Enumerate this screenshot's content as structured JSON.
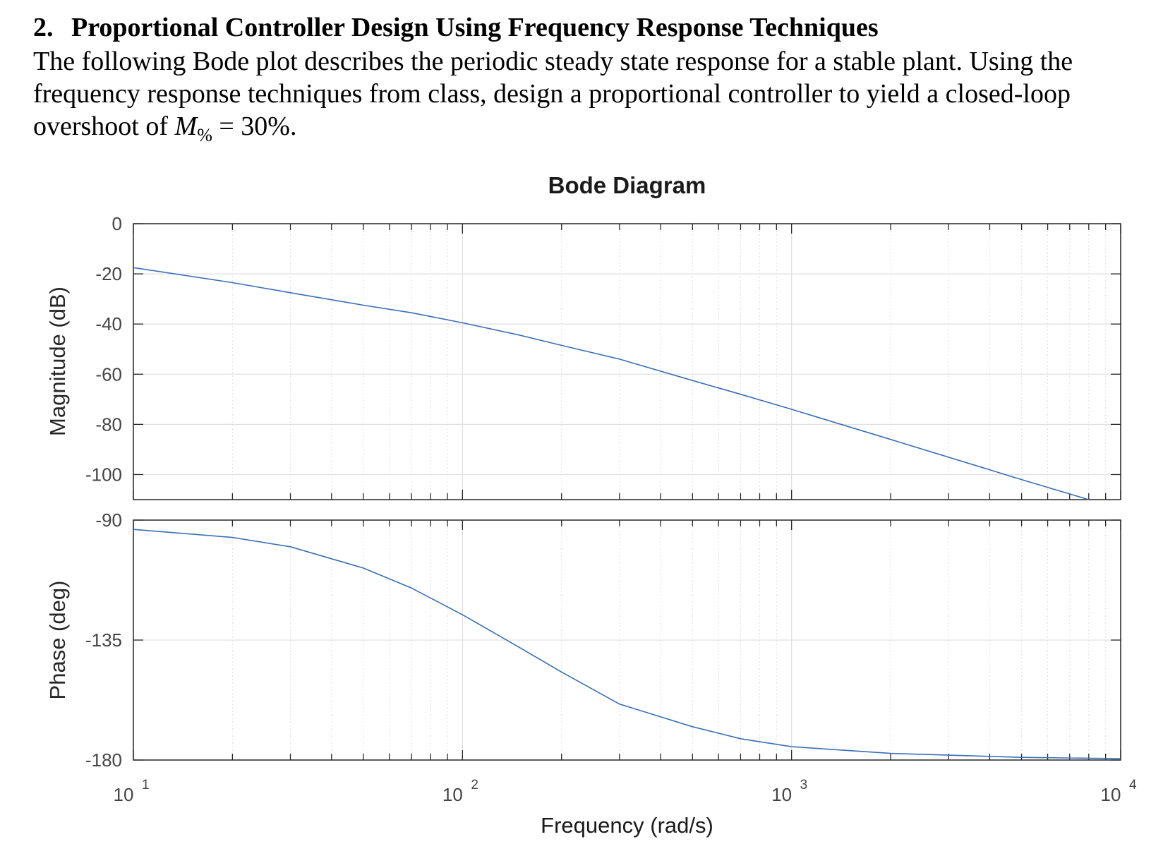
{
  "problem": {
    "heading_number": "2.",
    "heading_text": "Proportional Controller Design Using Frequency Response Techniques",
    "line1": "The following Bode plot describes the periodic steady state response for a stable plant. Using the",
    "line2": "frequency response techniques from class, design a proportional controller to yield a closed-loop",
    "line3_prefix": "overshoot of ",
    "line3_var": "M",
    "line3_sub": "%",
    "line3_suffix": " = 30%."
  },
  "chart_data": {
    "type": "line",
    "title": "Bode Diagram",
    "xlabel": "Frequency  (rad/s)",
    "xscale": "log",
    "xlim": [
      10,
      10000
    ],
    "x_ticks": [
      {
        "base": "10",
        "exp": "1"
      },
      {
        "base": "10",
        "exp": "2"
      },
      {
        "base": "10",
        "exp": "3"
      },
      {
        "base": "10",
        "exp": "4"
      }
    ],
    "grid": true,
    "colors": {
      "line": "#3a6fb5",
      "grid": "#e0e0e0",
      "axis": "#262626",
      "text": "#262626",
      "tick_label": "#444444"
    },
    "magnitude": {
      "ylabel": "Magnitude (dB)",
      "ylim": [
        -110,
        0
      ],
      "y_ticks": [
        "0",
        "-20",
        "-40",
        "-60",
        "-80",
        "-100"
      ],
      "x": [
        10,
        20,
        30,
        50,
        70,
        100,
        150,
        200,
        300,
        500,
        700,
        1000,
        2000,
        5000,
        8000
      ],
      "y": [
        -17.5,
        -23.5,
        -27.5,
        -32.5,
        -35.5,
        -39.5,
        -44.5,
        -48.5,
        -54,
        -62.5,
        -68,
        -74,
        -86,
        -102,
        -110
      ]
    },
    "phase": {
      "ylabel": "Phase (deg)",
      "ylim": [
        -180,
        -90
      ],
      "y_ticks": [
        "-90",
        "-135",
        "-180"
      ],
      "x": [
        10,
        20,
        30,
        50,
        70,
        100,
        150,
        200,
        300,
        500,
        700,
        1000,
        2000,
        5000,
        10000
      ],
      "y": [
        -93.5,
        -96.5,
        -100,
        -108,
        -115.5,
        -125.5,
        -138,
        -147,
        -159,
        -167.5,
        -172,
        -175,
        -177.5,
        -179,
        -179.5
      ]
    }
  }
}
